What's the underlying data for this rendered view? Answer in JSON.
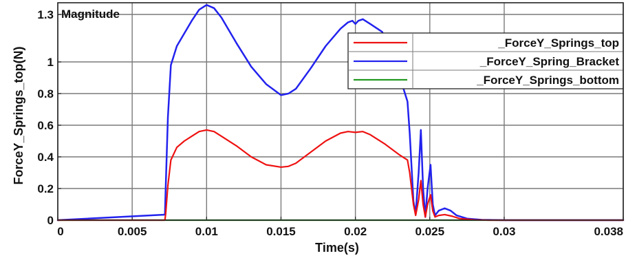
{
  "chart_data": {
    "type": "line",
    "title": "Magnitude",
    "xlabel": "Time(s)",
    "ylabel": "ForceY_Springs_top(N)",
    "xlim": [
      0,
      0.038
    ],
    "ylim": [
      0,
      1.3
    ],
    "x_ticks": [
      {
        "value": 0,
        "label": "0"
      },
      {
        "value": 0.005,
        "label": "0.005"
      },
      {
        "value": 0.01,
        "label": "0.01"
      },
      {
        "value": 0.015,
        "label": "0.015"
      },
      {
        "value": 0.02,
        "label": "0.02"
      },
      {
        "value": 0.025,
        "label": "0.025"
      },
      {
        "value": 0.03,
        "label": "0.03"
      },
      {
        "value": 0.038,
        "label": "0.038"
      }
    ],
    "y_ticks": [
      {
        "value": 0,
        "label": "0"
      },
      {
        "value": 0.2,
        "label": "0.2"
      },
      {
        "value": 0.4,
        "label": "0.4"
      },
      {
        "value": 0.6,
        "label": "0.6"
      },
      {
        "value": 0.8,
        "label": "0.8"
      },
      {
        "value": 1.0,
        "label": "1"
      },
      {
        "value": 1.3,
        "label": "1.3"
      }
    ],
    "grid": true,
    "legend_position": "top-right",
    "series": [
      {
        "name": "_ForceY_Springs_top",
        "color": "#ee1111",
        "points": [
          [
            0,
            0
          ],
          [
            0.0072,
            0
          ],
          [
            0.00725,
            0.04
          ],
          [
            0.0074,
            0.22
          ],
          [
            0.0076,
            0.38
          ],
          [
            0.008,
            0.46
          ],
          [
            0.0085,
            0.5
          ],
          [
            0.009,
            0.53
          ],
          [
            0.0095,
            0.56
          ],
          [
            0.01,
            0.57
          ],
          [
            0.0105,
            0.56
          ],
          [
            0.011,
            0.53
          ],
          [
            0.012,
            0.47
          ],
          [
            0.013,
            0.4
          ],
          [
            0.014,
            0.35
          ],
          [
            0.015,
            0.335
          ],
          [
            0.0155,
            0.34
          ],
          [
            0.016,
            0.36
          ],
          [
            0.017,
            0.43
          ],
          [
            0.018,
            0.5
          ],
          [
            0.019,
            0.55
          ],
          [
            0.0195,
            0.56
          ],
          [
            0.02,
            0.555
          ],
          [
            0.0205,
            0.56
          ],
          [
            0.021,
            0.54
          ],
          [
            0.022,
            0.48
          ],
          [
            0.023,
            0.41
          ],
          [
            0.0235,
            0.38
          ],
          [
            0.02365,
            0.3
          ],
          [
            0.0239,
            0.1
          ],
          [
            0.02405,
            0.03
          ],
          [
            0.02425,
            0.13
          ],
          [
            0.0244,
            0.25
          ],
          [
            0.02455,
            0.1
          ],
          [
            0.0247,
            0.02
          ],
          [
            0.02485,
            0.1
          ],
          [
            0.02505,
            0.16
          ],
          [
            0.0252,
            0.06
          ],
          [
            0.02535,
            0.02
          ],
          [
            0.0256,
            0.03
          ],
          [
            0.026,
            0.035
          ],
          [
            0.0265,
            0.025
          ],
          [
            0.027,
            0.01
          ],
          [
            0.028,
            0.002
          ],
          [
            0.029,
            0
          ],
          [
            0.038,
            0
          ]
        ]
      },
      {
        "name": "_ForceY_Spring_Bracket",
        "color": "#2222ee",
        "points": [
          [
            0,
            0
          ],
          [
            0.0072,
            0.035
          ],
          [
            0.00725,
            0.2
          ],
          [
            0.0074,
            0.65
          ],
          [
            0.0076,
            0.98
          ],
          [
            0.008,
            1.1
          ],
          [
            0.009,
            1.26
          ],
          [
            0.0095,
            1.33
          ],
          [
            0.01,
            1.36
          ],
          [
            0.0105,
            1.34
          ],
          [
            0.011,
            1.28
          ],
          [
            0.012,
            1.12
          ],
          [
            0.013,
            0.97
          ],
          [
            0.014,
            0.86
          ],
          [
            0.015,
            0.79
          ],
          [
            0.0155,
            0.8
          ],
          [
            0.016,
            0.83
          ],
          [
            0.017,
            0.96
          ],
          [
            0.018,
            1.1
          ],
          [
            0.019,
            1.21
          ],
          [
            0.0195,
            1.25
          ],
          [
            0.0198,
            1.26
          ],
          [
            0.02,
            1.24
          ],
          [
            0.0202,
            1.26
          ],
          [
            0.0205,
            1.27
          ],
          [
            0.021,
            1.24
          ],
          [
            0.0218,
            1.19
          ],
          [
            0.0225,
            1.04
          ],
          [
            0.023,
            0.9
          ],
          [
            0.0235,
            0.75
          ],
          [
            0.02365,
            0.55
          ],
          [
            0.0239,
            0.12
          ],
          [
            0.02405,
            0.04
          ],
          [
            0.02425,
            0.3
          ],
          [
            0.0244,
            0.57
          ],
          [
            0.02455,
            0.2
          ],
          [
            0.0247,
            0.02
          ],
          [
            0.02485,
            0.2
          ],
          [
            0.02505,
            0.35
          ],
          [
            0.0252,
            0.1
          ],
          [
            0.02535,
            0.03
          ],
          [
            0.0256,
            0.06
          ],
          [
            0.026,
            0.075
          ],
          [
            0.0264,
            0.06
          ],
          [
            0.0268,
            0.03
          ],
          [
            0.0275,
            0.01
          ],
          [
            0.0285,
            0.002
          ],
          [
            0.03,
            0
          ],
          [
            0.038,
            0
          ]
        ]
      },
      {
        "name": "_ForceY_Springs_bottom",
        "color": "#229922",
        "points": [
          [
            0,
            0
          ],
          [
            0.038,
            0
          ]
        ]
      }
    ]
  }
}
